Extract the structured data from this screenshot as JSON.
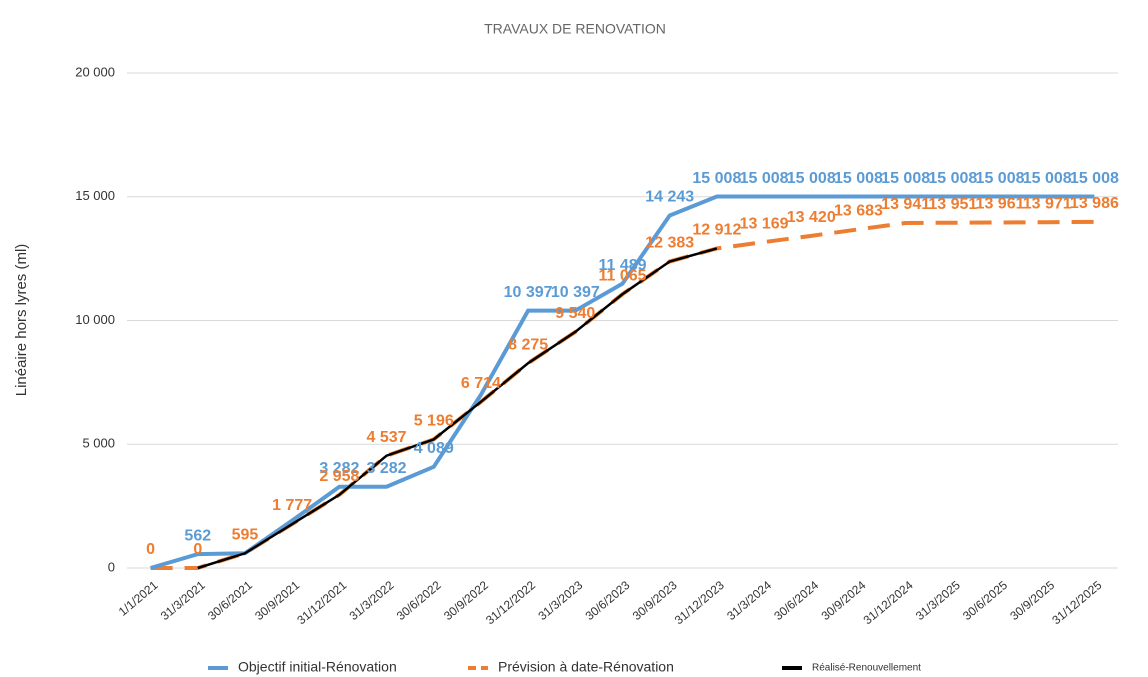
{
  "chart_data": {
    "type": "line",
    "title": "TRAVAUX DE RENOVATION",
    "y_label": "Linéaire hors lyres (ml)",
    "categories": [
      "1/1/2021",
      "31/3/2021",
      "30/6/2021",
      "30/9/2021",
      "31/12/2021",
      "31/3/2022",
      "30/6/2022",
      "30/9/2022",
      "31/12/2022",
      "31/3/2023",
      "30/6/2023",
      "30/9/2023",
      "31/12/2023",
      "31/3/2024",
      "30/6/2024",
      "30/9/2024",
      "31/12/2024",
      "31/3/2025",
      "30/6/2025",
      "30/9/2025",
      "31/12/2025"
    ],
    "series": [
      {
        "name": "Objectif initial-Rénovation",
        "color": "#5b9bd5",
        "dash": false,
        "values": [
          0,
          562,
          595,
          1916,
          3282,
          3282,
          4089,
          7000,
          10397,
          10397,
          11489,
          14243,
          15008,
          15008,
          15008,
          15008,
          15008,
          15008,
          15008,
          15008,
          15008
        ],
        "value_labels": [
          null,
          "562",
          null,
          null,
          "3 282",
          "3 282",
          "4 089",
          null,
          "10 397",
          "10 397",
          "11 489",
          "14 243",
          "15 008",
          "15 008",
          "15 008",
          "15 008",
          "15 008",
          "15 008",
          "15 008",
          "15 008",
          "15 008"
        ]
      },
      {
        "name": "Prévision à date-Rénovation",
        "color": "#ed7d31",
        "dash": true,
        "values": [
          0,
          0,
          595,
          1777,
          2958,
          4537,
          5196,
          6714,
          8275,
          9540,
          11065,
          12383,
          12912,
          13169,
          13420,
          13683,
          13941,
          13951,
          13961,
          13971,
          13986
        ],
        "value_labels": [
          "0",
          "0",
          "595",
          "1 777",
          "2 958",
          "4 537",
          "5 196",
          "6 714",
          "8 275",
          "9 540",
          "11 065",
          "12 383",
          "12 912",
          "13 169",
          "13 420",
          "13 683",
          "13 941",
          "13 951",
          "13 961",
          "13 971",
          "13 986"
        ]
      },
      {
        "name": "Réalisé-Renouvellement",
        "color": "#000000",
        "dash": false,
        "values": [
          null,
          0,
          595,
          1777,
          2958,
          4537,
          5196,
          6714,
          8275,
          9540,
          11065,
          12383,
          12912,
          null,
          null,
          null,
          null,
          null,
          null,
          null,
          null
        ]
      }
    ],
    "ylim": [
      0,
      20000
    ],
    "yticks": [
      0,
      {
        "value": 5000,
        "label": "5 000"
      },
      {
        "value": 10000,
        "label": "10 000"
      },
      {
        "value": 15000,
        "label": "15 000"
      },
      {
        "value": 20000,
        "label": "20 000"
      }
    ],
    "grid": true,
    "legend": "bottom"
  }
}
